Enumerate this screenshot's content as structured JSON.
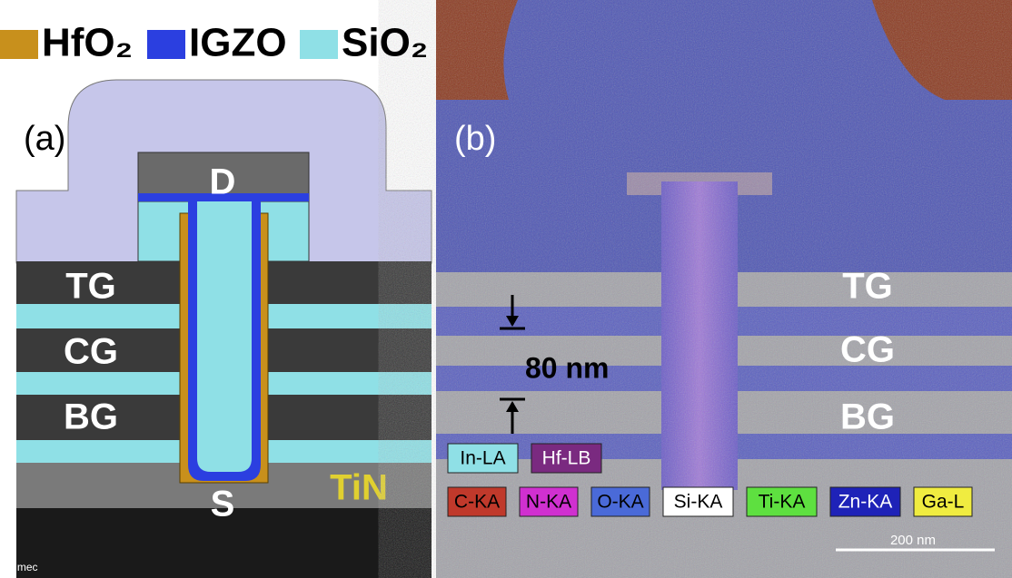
{
  "legend": [
    {
      "label": "HfO₂",
      "color": "#c8901c"
    },
    {
      "label": "IGZO",
      "color": "#2b3fe0"
    },
    {
      "label": "SiO₂",
      "color": "#8fe0e6"
    }
  ],
  "panel_a": {
    "label": "(a)",
    "layers": [
      "TG",
      "CG",
      "BG"
    ],
    "drain": "D",
    "source": "S",
    "contact": "TiN",
    "credit": "© imec"
  },
  "panel_b": {
    "label": "(b)",
    "layers": [
      "TG",
      "CG",
      "BG"
    ],
    "spacing": "80 nm",
    "scale_bar": "200 nm",
    "elements": [
      [
        {
          "label": "In-LA",
          "color": "#8fe0e6",
          "text": "#000"
        },
        {
          "label": "Hf-LB",
          "color": "#7a2a80",
          "text": "#fff"
        }
      ],
      [
        {
          "label": "C-KA",
          "color": "#c0392b",
          "text": "#000"
        },
        {
          "label": "N-KA",
          "color": "#d030d0",
          "text": "#000"
        },
        {
          "label": "O-KA",
          "color": "#4a6ad8",
          "text": "#000"
        },
        {
          "label": "Si-KA",
          "color": "#ffffff",
          "text": "#000"
        },
        {
          "label": "Ti-KA",
          "color": "#5ee040",
          "text": "#000"
        },
        {
          "label": "Zn-KA",
          "color": "#1e22b8",
          "text": "#fff"
        },
        {
          "label": "Ga-L",
          "color": "#f0ec40",
          "text": "#000"
        }
      ]
    ]
  }
}
